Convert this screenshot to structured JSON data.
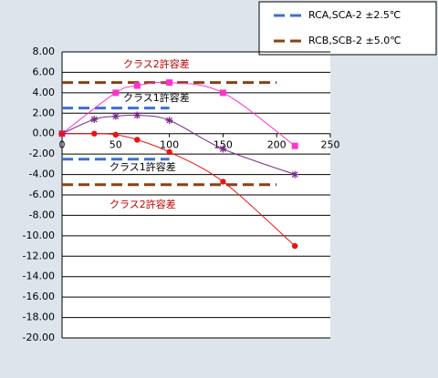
{
  "chart_data": {
    "type": "line",
    "xlim": [
      0,
      250
    ],
    "xticks": [
      0,
      50,
      100,
      150,
      200,
      250
    ],
    "ylim": [
      -20,
      8
    ],
    "yticks": [
      {
        "value": 8,
        "label": "8.00"
      },
      {
        "value": 6,
        "label": "6.00"
      },
      {
        "value": 4,
        "label": "4.00"
      },
      {
        "value": 2,
        "label": "2.00"
      },
      {
        "value": 0,
        "label": "0.00"
      },
      {
        "value": -2,
        "label": "-2.00"
      },
      {
        "value": -4,
        "label": "-4.00"
      },
      {
        "value": -6,
        "label": "-6.00"
      },
      {
        "value": -8,
        "label": "-8.00"
      },
      {
        "value": -10,
        "label": "-10.00"
      },
      {
        "value": -12,
        "label": "-12.00"
      },
      {
        "value": -14,
        "label": "-14.00"
      },
      {
        "value": -16,
        "label": "-16.00"
      },
      {
        "value": -18,
        "label": "-18.00"
      },
      {
        "value": -20,
        "label": "-20.00"
      }
    ],
    "grid": true,
    "series": [
      {
        "color": "#ff33cc",
        "marker": "square",
        "x": [
          0,
          50,
          70,
          100,
          150,
          217
        ],
        "values": [
          0,
          4.0,
          4.7,
          5.0,
          4.0,
          -1.2
        ]
      },
      {
        "color": "#7a2a8a",
        "marker": "star",
        "x": [
          0,
          30,
          50,
          70,
          100,
          150,
          217
        ],
        "values": [
          0,
          1.4,
          1.7,
          1.8,
          1.3,
          -1.5,
          -4.0
        ]
      },
      {
        "color": "#ee1111",
        "marker": "circle",
        "x": [
          0,
          30,
          50,
          70,
          100,
          150,
          217
        ],
        "values": [
          0,
          0,
          -0.1,
          -0.6,
          -1.8,
          -4.7,
          -11.0
        ]
      }
    ],
    "tolerances": [
      {
        "name": "RCA,SCA-2 ±2.5℃",
        "color": "#3b6fd6",
        "x": [
          0,
          100
        ],
        "upper": 2.5,
        "lower": -2.5
      },
      {
        "name": "RCB,SCB-2 ±5.0℃",
        "color": "#8b4010",
        "x": [
          0,
          200
        ],
        "upper": 5.0,
        "lower": -5.0
      }
    ],
    "annotations": [
      {
        "text": "クラス2許容差",
        "color": "#c00000"
      },
      {
        "text": "クラス1許容差",
        "color": "#000000"
      },
      {
        "text": "クラス1許容差",
        "color": "#000000"
      },
      {
        "text": "クラス2許容差",
        "color": "#c00000"
      }
    ]
  }
}
